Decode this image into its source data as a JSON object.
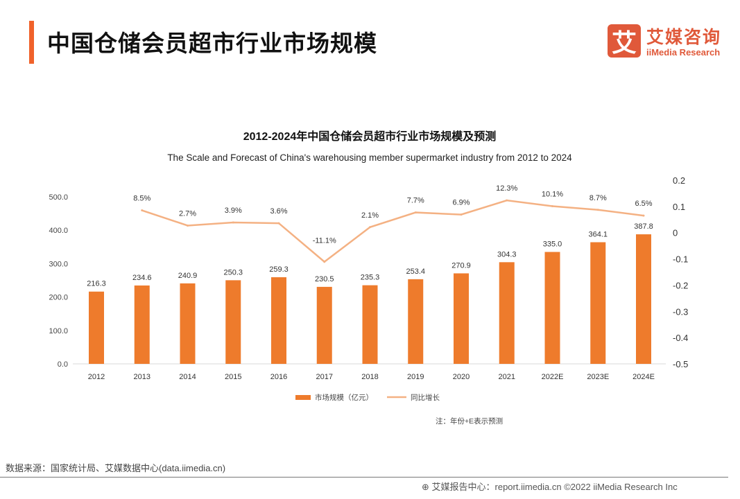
{
  "header": {
    "title": "中国仓储会员超市行业市场规模",
    "logo_mark": "艾",
    "logo_cn": "艾媒咨询",
    "logo_en": "iiMedia Research"
  },
  "chart_data": {
    "type": "bar+line",
    "title": "2012-2024年中国仓储会员超市行业市场规模及预测",
    "subtitle": "The Scale and Forecast of China's warehousing member supermarket industry from 2012 to 2024",
    "categories": [
      "2012",
      "2013",
      "2014",
      "2015",
      "2016",
      "2017",
      "2018",
      "2019",
      "2020",
      "2021",
      "2022E",
      "2023E",
      "2024E"
    ],
    "series": [
      {
        "name": "市场规模（亿元）",
        "type": "bar",
        "axis": "left",
        "color": "#ee7b2c",
        "values": [
          216.3,
          234.6,
          240.9,
          250.3,
          259.3,
          230.5,
          235.3,
          253.4,
          270.9,
          304.3,
          335.0,
          364.1,
          387.8
        ],
        "labels": [
          "216.3",
          "234.6",
          "240.9",
          "250.3",
          "259.3",
          "230.5",
          "235.3",
          "253.4",
          "270.9",
          "304.3",
          "335.0",
          "364.1",
          "387.8"
        ]
      },
      {
        "name": "同比增长",
        "type": "line",
        "axis": "right",
        "color": "#f4b183",
        "values": [
          null,
          0.085,
          0.027,
          0.039,
          0.036,
          -0.111,
          0.021,
          0.077,
          0.069,
          0.123,
          0.101,
          0.087,
          0.065
        ],
        "labels": [
          "",
          "8.5%",
          "2.7%",
          "3.9%",
          "3.6%",
          "-11.1%",
          "2.1%",
          "7.7%",
          "6.9%",
          "12.3%",
          "10.1%",
          "8.7%",
          "6.5%"
        ]
      }
    ],
    "left_axis": {
      "ylim": [
        0,
        500
      ],
      "ticks": [
        "0.0",
        "100.0",
        "200.0",
        "300.0",
        "400.0",
        "500.0"
      ]
    },
    "right_axis": {
      "ylim": [
        -0.5,
        0.2
      ],
      "ticks": [
        "-0.5",
        "-0.4",
        "-0.3",
        "-0.2",
        "-0.1",
        "0",
        "0.1",
        "0.2"
      ]
    },
    "grid": false,
    "legend_placement": "bottom",
    "note": "注：年份+E表示预测"
  },
  "footer": {
    "source": "数据来源：国家统计局、艾媒数据中心(data.iimedia.cn)",
    "credit": "艾媒报告中心：report.iimedia.cn    ©2022  iiMedia Research  Inc"
  }
}
